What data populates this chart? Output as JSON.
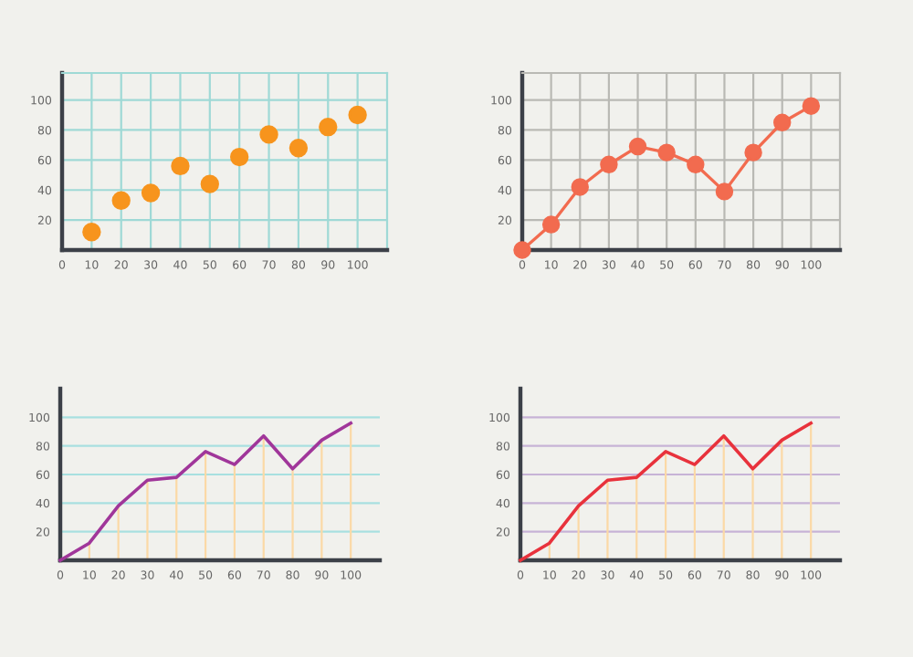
{
  "chart_data": [
    {
      "type": "scatter",
      "x": [
        10,
        20,
        30,
        40,
        50,
        60,
        70,
        80,
        90,
        100
      ],
      "series": [
        {
          "color": "#f7941d",
          "values": [
            12,
            33,
            38,
            56,
            44,
            62,
            77,
            68,
            82,
            90
          ]
        }
      ],
      "marker": "circle",
      "xlim": [
        0,
        110
      ],
      "ylim": [
        0,
        118
      ],
      "xticks": [
        0,
        10,
        20,
        30,
        40,
        50,
        60,
        70,
        80,
        90,
        100
      ],
      "yticks": [
        20,
        40,
        60,
        80,
        100
      ],
      "grid": true
    },
    {
      "type": "line",
      "x": [
        0,
        10,
        20,
        30,
        40,
        50,
        60,
        70,
        80,
        90,
        100
      ],
      "series": [
        {
          "color": "#f26b4f",
          "values": [
            0,
            17,
            42,
            57,
            69,
            65,
            57,
            39,
            65,
            85,
            96
          ]
        }
      ],
      "marker": "circle",
      "line_style": "solid",
      "xlim": [
        0,
        110
      ],
      "ylim": [
        0,
        118
      ],
      "xticks": [
        0,
        10,
        20,
        30,
        40,
        50,
        60,
        70,
        80,
        90,
        100
      ],
      "yticks": [
        20,
        40,
        60,
        80,
        100
      ],
      "grid": true
    },
    {
      "type": "line",
      "x": [
        0,
        10,
        20,
        30,
        40,
        50,
        60,
        70,
        80,
        90,
        100
      ],
      "series": [
        {
          "type": "bar",
          "color": "#fbd9a6",
          "values": [
            0,
            12,
            38,
            56,
            58,
            76,
            67,
            87,
            64,
            84,
            96
          ]
        },
        {
          "color": "#a0369a",
          "values": [
            0,
            12,
            38,
            56,
            58,
            76,
            67,
            87,
            64,
            84,
            96
          ]
        }
      ],
      "line_style": "solid",
      "xlim": [
        0,
        110
      ],
      "ylim": [
        0,
        120
      ],
      "xticks": [
        0,
        10,
        20,
        30,
        40,
        50,
        60,
        70,
        80,
        90,
        100
      ],
      "yticks": [
        20,
        40,
        60,
        80,
        100
      ],
      "grid": "y"
    },
    {
      "type": "line",
      "x": [
        0,
        10,
        20,
        30,
        40,
        50,
        60,
        70,
        80,
        90,
        100
      ],
      "series": [
        {
          "type": "bar",
          "color": "#fbd9a6",
          "values": [
            0,
            12,
            38,
            56,
            58,
            76,
            67,
            87,
            64,
            84,
            96
          ]
        },
        {
          "color": "#e8323c",
          "values": [
            0,
            12,
            38,
            56,
            58,
            76,
            67,
            87,
            64,
            84,
            96
          ]
        }
      ],
      "line_style": "solid",
      "xlim": [
        0,
        110
      ],
      "ylim": [
        0,
        120
      ],
      "xticks": [
        0,
        10,
        20,
        30,
        40,
        50,
        60,
        70,
        80,
        90,
        100
      ],
      "yticks": [
        20,
        40,
        60,
        80,
        100
      ],
      "grid": "y"
    }
  ]
}
